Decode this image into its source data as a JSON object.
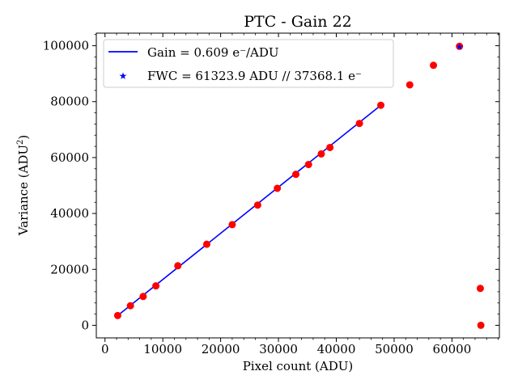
{
  "chart_data": {
    "type": "scatter",
    "title": "PTC - Gain 22",
    "xlabel": "Pixel count (ADU)",
    "ylabel": "Variance (ADU",
    "ylabel_sup": "2",
    "ylabel_tail": ")",
    "xlim": [
      -1500,
      68200
    ],
    "ylim": [
      -4500,
      104500
    ],
    "xticks": [
      0,
      10000,
      20000,
      30000,
      40000,
      50000,
      60000
    ],
    "yticks": [
      0,
      20000,
      40000,
      60000,
      80000,
      100000
    ],
    "grid": false,
    "legend_position": "upper left",
    "colors": {
      "points": "#ff0000",
      "fit": "#0000ff",
      "fwc": "#0000ff",
      "axes": "#000000"
    },
    "series": [
      {
        "kind": "points",
        "x": [
          2200,
          4400,
          6600,
          8800,
          12600,
          17600,
          22000,
          26400,
          29800,
          33000,
          35200,
          37400,
          38900,
          44000,
          47700,
          52700,
          56800,
          61300,
          64900,
          65000
        ],
        "y": [
          3500,
          7000,
          10300,
          14100,
          21300,
          29000,
          36000,
          43000,
          49000,
          54000,
          57500,
          61300,
          63600,
          72200,
          78700,
          86000,
          93000,
          99800,
          13200,
          0
        ]
      },
      {
        "kind": "fit",
        "name": "Gain = 0.609 e⁻/ADU",
        "x": [
          2200,
          47700
        ],
        "y": [
          3500,
          78700
        ]
      },
      {
        "kind": "fwc",
        "name": "FWC = 61323.9 ADU // 37368.1 e⁻",
        "x": [
          61323.9
        ],
        "y": [
          99800
        ]
      }
    ]
  }
}
